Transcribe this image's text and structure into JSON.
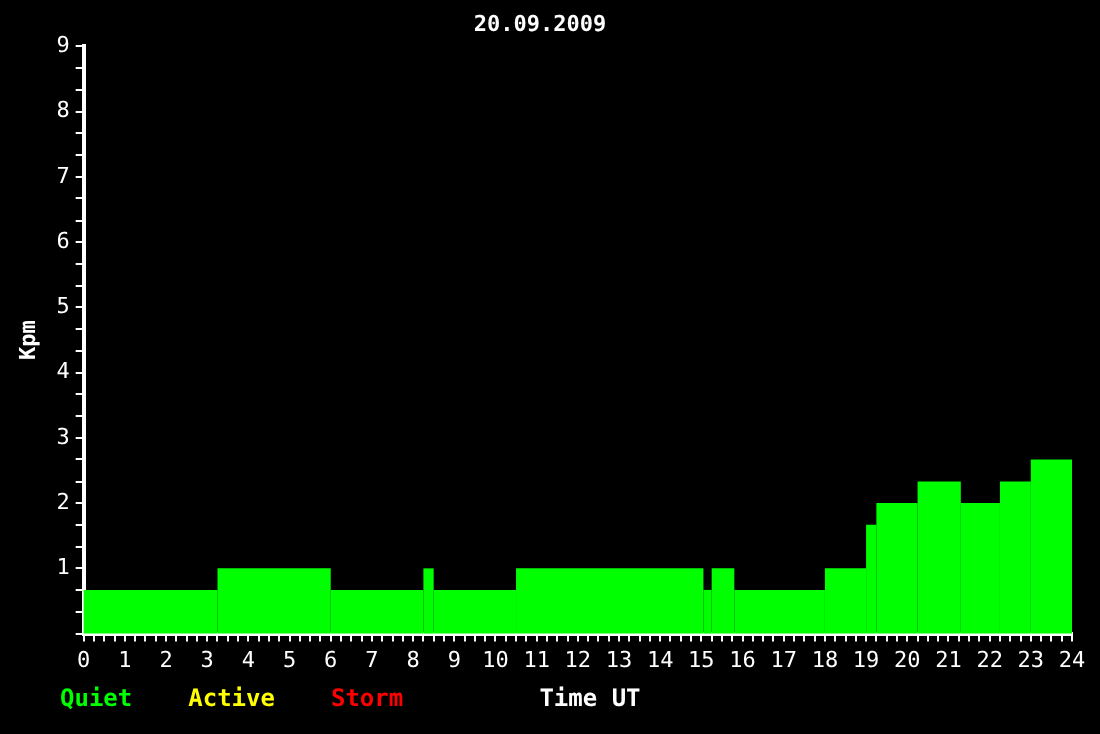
{
  "chart_data": {
    "type": "histogram",
    "title": "20.09.2009",
    "xlabel": "Time UT",
    "ylabel": "Kpm",
    "bins": [
      0,
      3.25,
      6,
      8.25,
      8.5,
      10.5,
      15.05,
      15.25,
      15.8,
      18,
      19,
      19.25,
      20.25,
      21.3,
      22.25,
      23,
      24
    ],
    "series": [
      {
        "name": "Quiet",
        "color": "#00ff00",
        "values": [
          0.67,
          1,
          0.67,
          1,
          0.67,
          1,
          0.67,
          1,
          0.67,
          1,
          1.67,
          2,
          2.33,
          2,
          2.33,
          2.67
        ]
      }
    ],
    "annotations": [
      "Active",
      "Storm"
    ],
    "xlim": [
      0,
      24
    ],
    "ylim": [
      0,
      9
    ],
    "xticks": [
      0,
      {
        "value": 0.25,
        "label": null
      },
      {
        "value": 0.5,
        "label": null
      },
      {
        "value": 0.75,
        "label": null
      },
      1,
      {
        "value": 1.25,
        "label": null
      },
      {
        "value": 1.5,
        "label": null
      },
      {
        "value": 1.75,
        "label": null
      },
      2,
      {
        "value": 2.25,
        "label": null
      },
      {
        "value": 2.5,
        "label": null
      },
      {
        "value": 2.75,
        "label": null
      },
      3,
      {
        "value": 3.25,
        "label": null
      },
      {
        "value": 3.5,
        "label": null
      },
      {
        "value": 3.75,
        "label": null
      },
      4,
      {
        "value": 4.25,
        "label": null
      },
      {
        "value": 4.5,
        "label": null
      },
      {
        "value": 4.75,
        "label": null
      },
      5,
      {
        "value": 5.25,
        "label": null
      },
      {
        "value": 5.5,
        "label": null
      },
      {
        "value": 5.75,
        "label": null
      },
      6,
      {
        "value": 6.25,
        "label": null
      },
      {
        "value": 6.5,
        "label": null
      },
      {
        "value": 6.75,
        "label": null
      },
      7,
      {
        "value": 7.25,
        "label": null
      },
      {
        "value": 7.5,
        "label": null
      },
      {
        "value": 7.75,
        "label": null
      },
      8,
      {
        "value": 8.25,
        "label": null
      },
      {
        "value": 8.5,
        "label": null
      },
      {
        "value": 8.75,
        "label": null
      },
      9,
      {
        "value": 9.25,
        "label": null
      },
      {
        "value": 9.5,
        "label": null
      },
      {
        "value": 9.75,
        "label": null
      },
      10,
      {
        "value": 10.25,
        "label": null
      },
      {
        "value": 10.5,
        "label": null
      },
      {
        "value": 10.75,
        "label": null
      },
      11,
      {
        "value": 11.25,
        "label": null
      },
      {
        "value": 11.5,
        "label": null
      },
      {
        "value": 11.75,
        "label": null
      },
      12,
      {
        "value": 12.25,
        "label": null
      },
      {
        "value": 12.5,
        "label": null
      },
      {
        "value": 12.75,
        "label": null
      },
      13,
      {
        "value": 13.25,
        "label": null
      },
      {
        "value": 13.5,
        "label": null
      },
      {
        "value": 13.75,
        "label": null
      },
      14,
      {
        "value": 14.25,
        "label": null
      },
      {
        "value": 14.5,
        "label": null
      },
      {
        "value": 14.75,
        "label": null
      },
      15,
      {
        "value": 15.25,
        "label": null
      },
      {
        "value": 15.5,
        "label": null
      },
      {
        "value": 15.75,
        "label": null
      },
      16,
      {
        "value": 16.25,
        "label": null
      },
      {
        "value": 16.5,
        "label": null
      },
      {
        "value": 16.75,
        "label": null
      },
      17,
      {
        "value": 17.25,
        "label": null
      },
      {
        "value": 17.5,
        "label": null
      },
      {
        "value": 17.75,
        "label": null
      },
      18,
      {
        "value": 18.25,
        "label": null
      },
      {
        "value": 18.5,
        "label": null
      },
      {
        "value": 18.75,
        "label": null
      },
      19,
      {
        "value": 19.25,
        "label": null
      },
      {
        "value": 19.5,
        "label": null
      },
      {
        "value": 19.75,
        "label": null
      },
      20,
      {
        "value": 20.25,
        "label": null
      },
      {
        "value": 20.5,
        "label": null
      },
      {
        "value": 20.75,
        "label": null
      },
      21,
      {
        "value": 21.25,
        "label": null
      },
      {
        "value": 21.5,
        "label": null
      },
      {
        "value": 21.75,
        "label": null
      },
      22,
      {
        "value": 22.25,
        "label": null
      },
      {
        "value": 22.5,
        "label": null
      },
      {
        "value": 22.75,
        "label": null
      },
      23,
      {
        "value": 23.25,
        "label": null
      },
      {
        "value": 23.5,
        "label": null
      },
      {
        "value": 23.75,
        "label": null
      },
      24
    ],
    "yticks": [
      {
        "value": 0,
        "label": null
      },
      {
        "value": 0.33,
        "label": null
      },
      {
        "value": 0.67,
        "label": null
      },
      1,
      {
        "value": 1.33,
        "label": null
      },
      {
        "value": 1.67,
        "label": null
      },
      2,
      {
        "value": 2.33,
        "label": null
      },
      {
        "value": 2.67,
        "label": null
      },
      3,
      {
        "value": 3.33,
        "label": null
      },
      {
        "value": 3.67,
        "label": null
      },
      4,
      {
        "value": 4.33,
        "label": null
      },
      {
        "value": 4.67,
        "label": null
      },
      5,
      {
        "value": 5.33,
        "label": null
      },
      {
        "value": 5.67,
        "label": null
      },
      6,
      {
        "value": 6.33,
        "label": null
      },
      {
        "value": 6.67,
        "label": null
      },
      7,
      {
        "value": 7.33,
        "label": null
      },
      {
        "value": 7.67,
        "label": null
      },
      8,
      {
        "value": 8.33,
        "label": null
      },
      {
        "value": 8.67,
        "label": null
      },
      9
    ],
    "grid": false
  }
}
